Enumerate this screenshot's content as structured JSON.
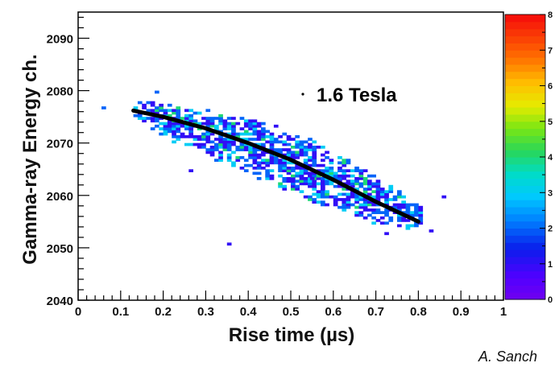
{
  "chart_data": {
    "type": "heatmap",
    "title": "",
    "annotation": "1.6  Tesla",
    "xlabel": "Rise time (µs)",
    "ylabel": "Gamma-ray Energy ch.",
    "xlim": [
      0,
      1
    ],
    "ylim": [
      2040,
      2095
    ],
    "xticks": [
      0,
      0.1,
      0.2,
      0.3,
      0.4,
      0.5,
      0.6,
      0.7,
      0.8,
      0.9,
      1
    ],
    "xtick_labels": [
      "0",
      "0.1",
      "0.2",
      "0.3",
      "0.4",
      "0.5",
      "0.6",
      "0.7",
      "0.8",
      "0.9",
      "1"
    ],
    "yticks": [
      2040,
      2050,
      2060,
      2070,
      2080,
      2090
    ],
    "ytick_labels": [
      "2040",
      "2050",
      "2060",
      "2070",
      "2080",
      "2090"
    ],
    "colorbar": {
      "min": 0,
      "max": 8,
      "ticks": [
        0,
        1,
        2,
        3,
        4,
        5,
        6,
        7,
        8
      ],
      "tick_labels": [
        "0",
        "1",
        "2",
        "3",
        "4",
        "5",
        "6",
        "7",
        "8"
      ]
    },
    "fit_curve": {
      "x": [
        0.13,
        0.2,
        0.3,
        0.4,
        0.5,
        0.6,
        0.7,
        0.8
      ],
      "y": [
        2076.2,
        2075.0,
        2072.8,
        2070.0,
        2066.8,
        2063.0,
        2058.8,
        2055.0
      ]
    },
    "band": {
      "x": [
        0.13,
        0.2,
        0.3,
        0.4,
        0.5,
        0.6,
        0.7,
        0.8
      ],
      "center": [
        2076.0,
        2074.5,
        2072.0,
        2069.5,
        2066.0,
        2063.0,
        2059.0,
        2055.5
      ],
      "halfwidth": [
        1.5,
        3.5,
        4.5,
        5.5,
        6.0,
        5.5,
        4.5,
        2.5
      ]
    },
    "outliers": [
      {
        "x": 0.055,
        "y": 2076.5,
        "count": 2
      },
      {
        "x": 0.35,
        "y": 2050.5,
        "count": 1
      },
      {
        "x": 0.855,
        "y": 2059.5,
        "count": 1
      },
      {
        "x": 0.825,
        "y": 2053.0,
        "count": 1
      },
      {
        "x": 0.72,
        "y": 2052.5,
        "count": 1
      },
      {
        "x": 0.18,
        "y": 2079.5,
        "count": 2
      },
      {
        "x": 0.26,
        "y": 2064.5,
        "count": 1
      },
      {
        "x": 0.545,
        "y": 2063.0,
        "count": 1
      }
    ]
  },
  "credit": "A. Sanch"
}
